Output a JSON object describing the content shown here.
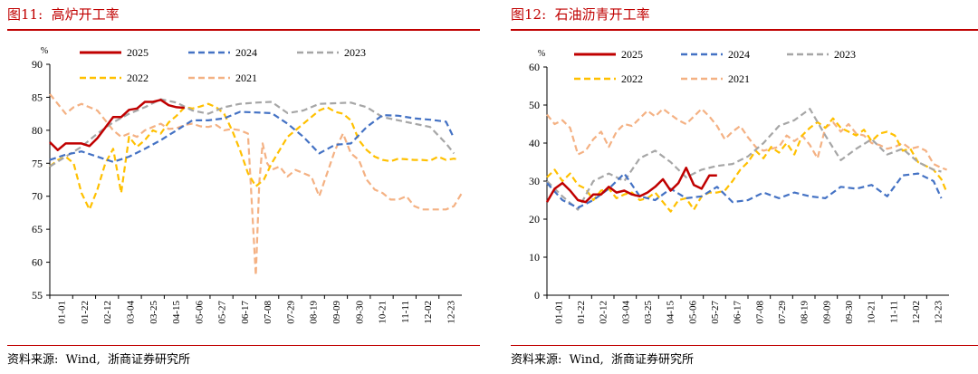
{
  "figures": [
    {
      "title": "图11:  高炉开工率",
      "source": "资料来源:  Wind,  浙商证券研究所",
      "unit": "%"
    },
    {
      "title": "图12:  石油沥青开工率",
      "source": "资料来源:  Wind,  浙商证券研究所",
      "unit": "%"
    }
  ],
  "colors": {
    "2025": "#c00000",
    "2024": "#4472c4",
    "2023": "#a6a6a6",
    "2022": "#ffc000",
    "2021": "#f4b183",
    "title_red": "#c00000"
  },
  "chart_data": [
    {
      "type": "line",
      "title": "高炉开工率",
      "ylabel": "%",
      "ylim": [
        55,
        90
      ],
      "yticks": [
        55,
        60,
        65,
        70,
        75,
        80,
        85,
        90
      ],
      "xlim": [
        1,
        365
      ],
      "categories": [
        "01-01",
        "01-22",
        "02-12",
        "03-04",
        "03-25",
        "04-15",
        "05-06",
        "05-27",
        "06-17",
        "07-08",
        "07-29",
        "08-19",
        "09-09",
        "09-30",
        "10-21",
        "11-11",
        "12-02",
        "12-23"
      ],
      "legend": "top-center",
      "series": [
        {
          "name": "2025",
          "style": "solid",
          "x": [
            1,
            8,
            15,
            22,
            29,
            36,
            43,
            50,
            57,
            64,
            71,
            78,
            85,
            92,
            99,
            106,
            113,
            120,
            127,
            134,
            141,
            148,
            155,
            162,
            169
          ],
          "y": [
            78.2,
            77.0,
            78.0,
            78.0,
            78.0,
            77.6,
            78.8,
            80.4,
            82.0,
            82.0,
            83.1,
            83.3,
            84.3,
            84.3,
            84.6,
            83.8,
            83.5,
            83.4,
            null,
            null,
            null,
            null,
            null,
            null,
            null
          ]
        },
        {
          "name": "2024",
          "style": "dashed",
          "x": [
            1,
            15,
            29,
            43,
            57,
            71,
            85,
            99,
            113,
            127,
            141,
            155,
            169,
            183,
            197,
            211,
            225,
            239,
            253,
            267,
            281,
            295,
            309,
            323,
            337,
            351,
            358
          ],
          "y": [
            75.5,
            76.3,
            76.8,
            76.0,
            75.2,
            76.0,
            77.2,
            78.5,
            80.0,
            81.5,
            81.5,
            81.8,
            82.8,
            82.7,
            82.6,
            81.0,
            79.0,
            76.5,
            77.8,
            78.0,
            80.5,
            82.3,
            82.2,
            81.8,
            81.6,
            81.3,
            78.8
          ]
        },
        {
          "name": "2023",
          "style": "dashed",
          "x": [
            1,
            15,
            29,
            43,
            57,
            71,
            85,
            99,
            113,
            127,
            141,
            155,
            169,
            183,
            197,
            211,
            225,
            239,
            253,
            267,
            281,
            295,
            309,
            323,
            337,
            351,
            358
          ],
          "y": [
            74.5,
            76.0,
            77.5,
            79.5,
            81.2,
            82.5,
            83.5,
            84.7,
            84.2,
            83.0,
            82.5,
            83.5,
            84.0,
            84.2,
            84.3,
            82.6,
            83.0,
            84.0,
            84.1,
            84.2,
            83.5,
            82.0,
            81.5,
            81.0,
            80.5,
            78.0,
            76.5
          ]
        },
        {
          "name": "2022",
          "style": "dashed",
          "x": [
            1,
            8,
            15,
            22,
            29,
            36,
            43,
            50,
            57,
            64,
            71,
            78,
            85,
            92,
            99,
            106,
            113,
            120,
            127,
            134,
            141,
            148,
            155,
            162,
            169,
            176,
            183,
            190,
            197,
            204,
            211,
            218,
            225,
            232,
            239,
            246,
            253,
            260,
            267,
            274,
            281,
            288,
            295,
            302,
            309,
            316,
            323,
            330,
            337,
            344,
            351,
            358,
            363
          ],
          "y": [
            74.5,
            75.5,
            76.0,
            75.0,
            70.5,
            68.0,
            71.0,
            75.0,
            77.2,
            70.5,
            79.0,
            77.5,
            78.5,
            80.0,
            79.5,
            81.2,
            82.2,
            83.5,
            83.3,
            83.6,
            84.0,
            83.5,
            82.5,
            80.0,
            77.0,
            73.5,
            71.5,
            72.5,
            75.0,
            77.0,
            79.0,
            80.0,
            81.0,
            82.0,
            83.0,
            83.5,
            82.8,
            82.5,
            81.5,
            78.5,
            77.0,
            76.0,
            75.5,
            75.3,
            75.7,
            75.6,
            75.5,
            75.5,
            75.4,
            76.0,
            75.5,
            75.7,
            75.5
          ]
        },
        {
          "name": "2021",
          "style": "dashed",
          "x": [
            1,
            8,
            15,
            22,
            29,
            36,
            43,
            50,
            57,
            64,
            71,
            78,
            85,
            92,
            99,
            106,
            113,
            120,
            127,
            134,
            141,
            148,
            155,
            162,
            169,
            176,
            183,
            186,
            189,
            193,
            197,
            204,
            211,
            218,
            225,
            232,
            239,
            246,
            253,
            260,
            267,
            274,
            281,
            288,
            295,
            302,
            309,
            316,
            323,
            330,
            337,
            344,
            351,
            358,
            365
          ],
          "y": [
            85.5,
            84.0,
            82.5,
            83.5,
            84.0,
            83.5,
            83.0,
            81.5,
            80.0,
            79.0,
            79.5,
            79.0,
            80.0,
            80.5,
            81.0,
            80.2,
            80.3,
            80.8,
            81.0,
            80.6,
            80.5,
            80.8,
            80.0,
            80.2,
            80.0,
            79.5,
            58.0,
            72.0,
            78.0,
            75.0,
            74.0,
            74.5,
            73.0,
            74.0,
            73.5,
            73.0,
            70.0,
            73.5,
            77.0,
            79.5,
            76.5,
            75.5,
            72.5,
            71.0,
            70.5,
            69.5,
            69.5,
            70.0,
            68.5,
            68.0,
            68.0,
            68.0,
            68.0,
            68.5,
            70.5
          ]
        }
      ]
    },
    {
      "type": "line",
      "title": "石油沥青开工率",
      "ylabel": "%",
      "ylim": [
        0,
        60
      ],
      "yticks": [
        0,
        10,
        20,
        30,
        40,
        50,
        60
      ],
      "xlim": [
        1,
        365
      ],
      "categories": [
        "01-01",
        "01-22",
        "02-12",
        "03-04",
        "03-25",
        "04-15",
        "05-06",
        "05-27",
        "06-17",
        "07-08",
        "07-29",
        "08-19",
        "09-09",
        "09-30",
        "10-21",
        "11-11",
        "12-02",
        "12-23"
      ],
      "legend": "top-center",
      "series": [
        {
          "name": "2025",
          "style": "solid",
          "x": [
            1,
            8,
            15,
            22,
            29,
            36,
            43,
            50,
            57,
            64,
            71,
            78,
            85,
            92,
            99,
            106,
            113,
            120,
            127,
            134,
            141,
            148,
            155,
            162,
            169
          ],
          "y": [
            24.5,
            28.0,
            29.5,
            27.5,
            25.0,
            24.5,
            26.5,
            26.5,
            28.5,
            27.0,
            27.5,
            26.5,
            26.0,
            27.0,
            28.5,
            30.5,
            27.5,
            29.5,
            33.5,
            29.0,
            28.0,
            31.5,
            31.5,
            null,
            null
          ]
        },
        {
          "name": "2024",
          "style": "dashed",
          "x": [
            1,
            15,
            29,
            43,
            57,
            71,
            85,
            99,
            113,
            127,
            141,
            155,
            169,
            183,
            197,
            211,
            225,
            239,
            253,
            267,
            281,
            295,
            309,
            323,
            337,
            351,
            358
          ],
          "y": [
            29.5,
            25.0,
            23.0,
            25.0,
            28.0,
            32.0,
            26.0,
            25.0,
            28.0,
            25.5,
            26.0,
            28.5,
            24.5,
            25.0,
            27.0,
            25.5,
            27.0,
            26.0,
            25.5,
            28.5,
            28.0,
            29.0,
            26.0,
            31.5,
            32.0,
            30.0,
            25.5
          ]
        },
        {
          "name": "2023",
          "style": "dashed",
          "x": [
            1,
            15,
            29,
            43,
            57,
            71,
            85,
            99,
            113,
            127,
            141,
            155,
            169,
            183,
            197,
            211,
            225,
            239,
            253,
            267,
            281,
            295,
            309,
            323,
            337,
            351,
            358
          ],
          "y": [
            30.0,
            26.0,
            22.5,
            30.0,
            32.0,
            30.0,
            36.0,
            38.0,
            35.0,
            31.0,
            33.0,
            34.0,
            34.5,
            36.5,
            40.0,
            44.5,
            46.0,
            49.0,
            42.0,
            35.5,
            38.5,
            41.0,
            37.0,
            38.5,
            35.0,
            33.0,
            32.5
          ]
        },
        {
          "name": "2022",
          "style": "dashed",
          "x": [
            1,
            8,
            15,
            22,
            29,
            36,
            43,
            50,
            57,
            64,
            71,
            78,
            85,
            92,
            99,
            106,
            113,
            120,
            127,
            134,
            141,
            148,
            155,
            162,
            169,
            176,
            183,
            190,
            197,
            204,
            211,
            218,
            225,
            232,
            239,
            246,
            253,
            260,
            267,
            274,
            281,
            288,
            295,
            302,
            309,
            316,
            323,
            330,
            337,
            344,
            351,
            358,
            363
          ],
          "y": [
            31.0,
            33.0,
            30.0,
            32.0,
            29.0,
            28.0,
            25.0,
            27.5,
            28.0,
            25.5,
            26.5,
            27.0,
            25.0,
            25.5,
            27.0,
            24.5,
            22.0,
            25.0,
            25.5,
            22.5,
            26.0,
            27.0,
            27.0,
            27.5,
            30.0,
            33.0,
            35.0,
            38.0,
            36.0,
            39.0,
            37.5,
            40.0,
            37.0,
            42.0,
            44.0,
            45.5,
            44.0,
            46.5,
            44.0,
            43.0,
            42.0,
            43.5,
            40.5,
            42.5,
            43.0,
            42.0,
            38.0,
            38.5,
            35.0,
            34.0,
            33.0,
            30.5,
            27.0
          ]
        },
        {
          "name": "2021",
          "style": "dashed",
          "x": [
            1,
            8,
            15,
            22,
            29,
            36,
            43,
            50,
            57,
            64,
            71,
            78,
            85,
            92,
            99,
            106,
            113,
            120,
            127,
            134,
            141,
            148,
            155,
            162,
            169,
            176,
            183,
            190,
            197,
            204,
            211,
            218,
            225,
            232,
            239,
            246,
            253,
            260,
            267,
            274,
            281,
            288,
            295,
            302,
            309,
            316,
            323,
            330,
            337,
            344,
            351,
            358,
            363
          ],
          "y": [
            47.5,
            45.0,
            46.0,
            44.0,
            37.0,
            38.0,
            41.0,
            43.0,
            39.0,
            43.0,
            45.0,
            44.5,
            46.5,
            48.5,
            47.0,
            49.0,
            47.5,
            46.0,
            45.0,
            47.0,
            49.0,
            47.0,
            44.5,
            41.0,
            43.0,
            44.5,
            41.5,
            39.0,
            38.0,
            38.5,
            39.0,
            42.0,
            40.5,
            42.0,
            39.5,
            36.0,
            44.0,
            45.5,
            43.0,
            45.0,
            42.5,
            42.0,
            40.0,
            39.5,
            38.5,
            39.0,
            40.0,
            38.5,
            39.0,
            38.0,
            34.5,
            33.5,
            33.0
          ]
        }
      ]
    }
  ]
}
